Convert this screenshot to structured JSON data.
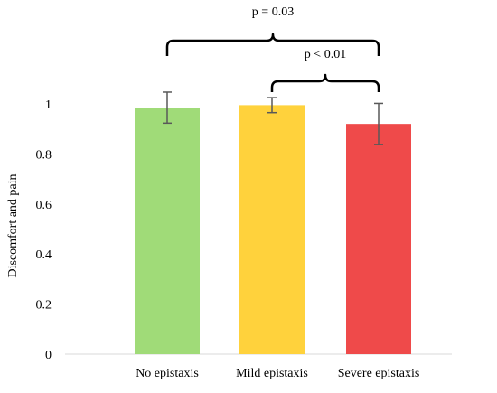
{
  "chart_data": {
    "type": "bar",
    "title": "",
    "xlabel": "",
    "ylabel": "Discomfort and pain",
    "ylim": [
      0,
      1
    ],
    "yticks": [
      0,
      0.2,
      0.4,
      0.6,
      0.8,
      1
    ],
    "ytick_labels": [
      "0",
      "0.2",
      "0.4",
      "0.6",
      "0.8",
      "1"
    ],
    "categories": [
      "No epistaxis",
      "Mild epistaxis",
      "Severe epistaxis"
    ],
    "values": [
      0.985,
      0.995,
      0.92
    ],
    "error": [
      0.062,
      0.03,
      0.082
    ],
    "colors": [
      "#a0db78",
      "#ffd23c",
      "#ef4a4a"
    ],
    "grid": false,
    "legend": "none",
    "annotations": [
      {
        "label": "p = 0.03",
        "from": 0,
        "to": 2
      },
      {
        "label": "p < 0.01",
        "from": 1,
        "to": 2
      }
    ]
  }
}
